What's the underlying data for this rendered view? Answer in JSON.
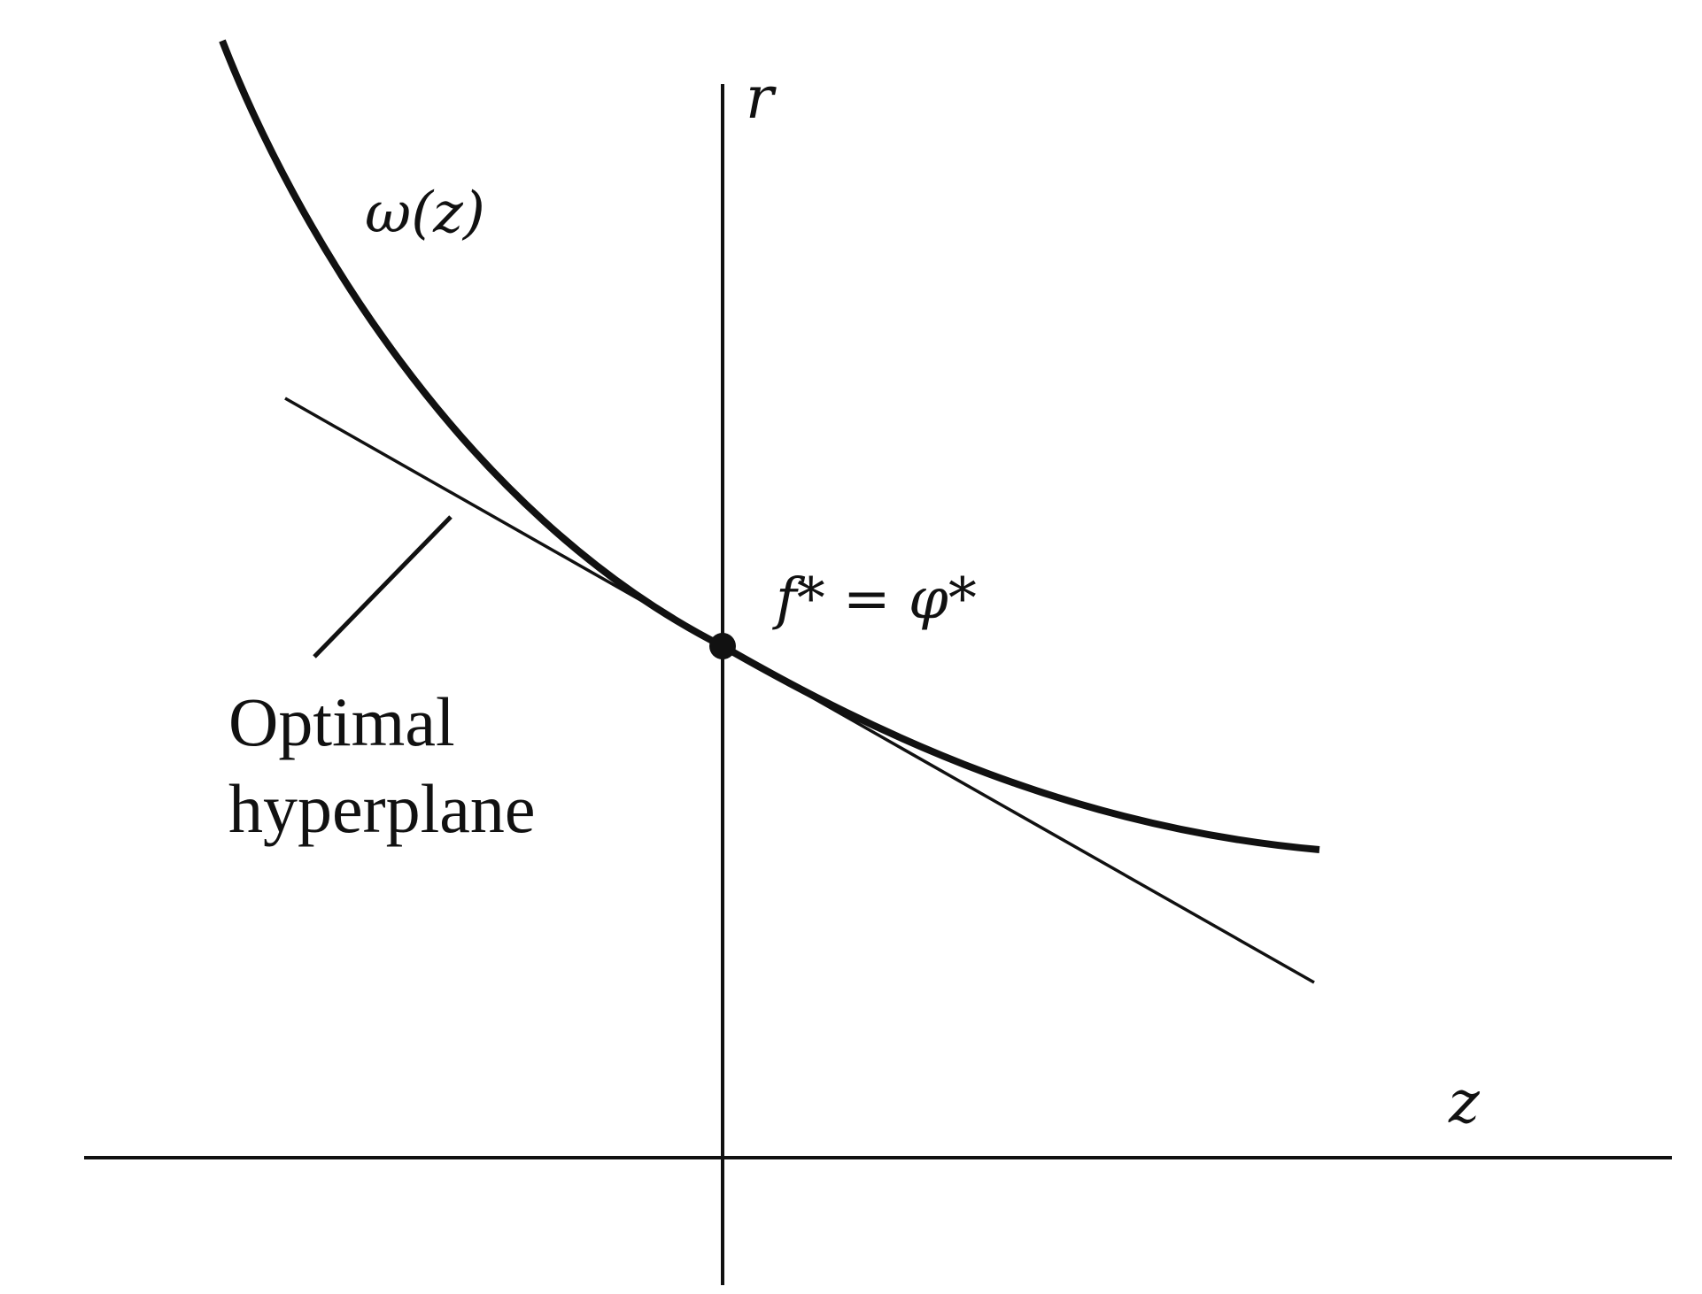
{
  "labels": {
    "vertical_axis": "r",
    "horizontal_axis": "z",
    "curve": "ω(z)",
    "optimal_point": "f* = φ*",
    "hyperplane_line1": "Optimal",
    "hyperplane_line2": "hyperplane"
  },
  "colors": {
    "ink": "#111111",
    "background": "#ffffff"
  }
}
